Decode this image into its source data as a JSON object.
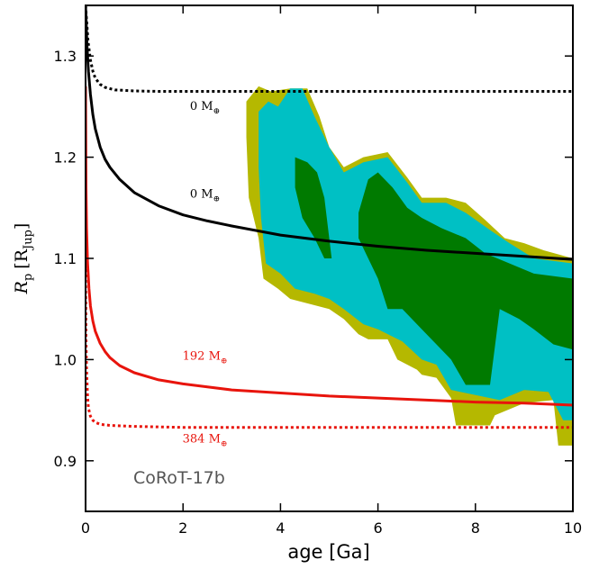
{
  "chart_data": {
    "type": "line",
    "title": "",
    "panel_label": "CoRoT-17b",
    "xlabel": "age [Ga]",
    "ylabel": {
      "symbol": "R",
      "symbol_sub": "p",
      "unit_open": "[R",
      "unit_sub": "Jup",
      "unit_close": "]"
    },
    "xlim": [
      0,
      10
    ],
    "ylim": [
      0.85,
      1.35
    ],
    "x_ticks": [
      0,
      2,
      4,
      6,
      8,
      10
    ],
    "y_ticks": [
      0.9,
      1.0,
      1.1,
      1.2,
      1.3
    ],
    "x_tick_labels": [
      "0",
      "2",
      "4",
      "6",
      "8",
      "10"
    ],
    "y_tick_labels": [
      "0.9",
      "1.0",
      "1.1",
      "1.2",
      "1.3"
    ],
    "colors": {
      "outer_region": "#b5b800",
      "middle_region": "#00c0c4",
      "inner_region": "#007a00",
      "core_0_curves": "#000000",
      "core_heavy_curves": "#e8140c",
      "panel_label": "#555555"
    },
    "series": [
      {
        "label_text": "0 M",
        "label_sub": "⊕",
        "style": "dotted",
        "color": "#000000",
        "label_at": [
          2.45,
          1.247
        ],
        "x": [
          0.0,
          0.05,
          0.1,
          0.15,
          0.2,
          0.3,
          0.4,
          0.6,
          0.8,
          1.0,
          1.5,
          2,
          3,
          4,
          5,
          6,
          7,
          8,
          9,
          10
        ],
        "y": [
          1.35,
          1.315,
          1.296,
          1.285,
          1.278,
          1.272,
          1.269,
          1.2665,
          1.266,
          1.2655,
          1.265,
          1.265,
          1.265,
          1.265,
          1.265,
          1.265,
          1.265,
          1.265,
          1.265,
          1.265
        ]
      },
      {
        "label_text": "0 M",
        "label_sub": "⊕",
        "style": "solid",
        "color": "#000000",
        "label_at": [
          2.45,
          1.16
        ],
        "x": [
          0.0,
          0.03,
          0.06,
          0.1,
          0.15,
          0.2,
          0.3,
          0.4,
          0.5,
          0.7,
          1.0,
          1.5,
          2,
          2.5,
          3,
          4,
          5,
          6,
          7,
          8,
          9,
          10
        ],
        "y": [
          1.35,
          1.31,
          1.285,
          1.262,
          1.242,
          1.228,
          1.21,
          1.198,
          1.19,
          1.178,
          1.165,
          1.152,
          1.143,
          1.137,
          1.132,
          1.123,
          1.117,
          1.112,
          1.108,
          1.105,
          1.102,
          1.099
        ]
      },
      {
        "label_text": "192 M",
        "label_sub": "⊕",
        "style": "solid",
        "color": "#e8140c",
        "label_at": [
          2.45,
          1.0
        ],
        "x": [
          0.0,
          0.01,
          0.02,
          0.04,
          0.07,
          0.1,
          0.15,
          0.2,
          0.3,
          0.4,
          0.5,
          0.7,
          1.0,
          1.5,
          2,
          2.5,
          3,
          4,
          5,
          6,
          7,
          8,
          9,
          10
        ],
        "y": [
          1.27,
          1.17,
          1.13,
          1.096,
          1.07,
          1.053,
          1.038,
          1.028,
          1.016,
          1.008,
          1.002,
          0.994,
          0.987,
          0.98,
          0.976,
          0.973,
          0.97,
          0.967,
          0.964,
          0.962,
          0.96,
          0.958,
          0.957,
          0.955
        ]
      },
      {
        "label_text": "384 M",
        "label_sub": "⊕",
        "style": "dotted",
        "color": "#e8140c",
        "label_at": [
          2.45,
          0.918
        ],
        "x": [
          0.0,
          0.01,
          0.02,
          0.04,
          0.06,
          0.1,
          0.15,
          0.2,
          0.3,
          0.5,
          1.0,
          2,
          3,
          4,
          5,
          6,
          7,
          8,
          9,
          10
        ],
        "y": [
          1.1,
          1.02,
          0.99,
          0.964,
          0.952,
          0.944,
          0.94,
          0.938,
          0.936,
          0.935,
          0.934,
          0.933,
          0.933,
          0.933,
          0.933,
          0.933,
          0.933,
          0.933,
          0.933,
          0.933
        ]
      }
    ],
    "regions": [
      {
        "level": "outer",
        "color": "#b5b800",
        "polygon": [
          [
            3.3,
            1.255
          ],
          [
            3.55,
            1.27
          ],
          [
            3.8,
            1.265
          ],
          [
            4.2,
            1.268
          ],
          [
            4.55,
            1.268
          ],
          [
            4.8,
            1.24
          ],
          [
            5.0,
            1.21
          ],
          [
            5.3,
            1.19
          ],
          [
            5.7,
            1.2
          ],
          [
            6.2,
            1.205
          ],
          [
            6.6,
            1.18
          ],
          [
            6.9,
            1.16
          ],
          [
            7.4,
            1.16
          ],
          [
            7.8,
            1.155
          ],
          [
            8.2,
            1.138
          ],
          [
            8.6,
            1.12
          ],
          [
            9.0,
            1.115
          ],
          [
            9.4,
            1.108
          ],
          [
            10.0,
            1.1
          ],
          [
            10.0,
            0.915
          ],
          [
            9.7,
            0.915
          ],
          [
            9.6,
            0.96
          ],
          [
            9.0,
            0.957
          ],
          [
            8.4,
            0.945
          ],
          [
            8.3,
            0.935
          ],
          [
            7.6,
            0.935
          ],
          [
            7.5,
            0.962
          ],
          [
            7.2,
            0.982
          ],
          [
            6.9,
            0.985
          ],
          [
            6.8,
            0.99
          ],
          [
            6.4,
            1.0
          ],
          [
            6.2,
            1.02
          ],
          [
            5.8,
            1.02
          ],
          [
            5.6,
            1.025
          ],
          [
            5.3,
            1.04
          ],
          [
            5.0,
            1.05
          ],
          [
            4.6,
            1.055
          ],
          [
            4.2,
            1.06
          ],
          [
            3.95,
            1.07
          ],
          [
            3.65,
            1.08
          ],
          [
            3.55,
            1.12
          ],
          [
            3.35,
            1.16
          ],
          [
            3.3,
            1.22
          ]
        ]
      },
      {
        "level": "middle",
        "color": "#00c0c4",
        "polygon": [
          [
            3.55,
            1.245
          ],
          [
            3.75,
            1.255
          ],
          [
            3.95,
            1.25
          ],
          [
            4.2,
            1.268
          ],
          [
            4.45,
            1.268
          ],
          [
            4.7,
            1.24
          ],
          [
            5.0,
            1.21
          ],
          [
            5.3,
            1.185
          ],
          [
            5.7,
            1.195
          ],
          [
            6.2,
            1.2
          ],
          [
            6.6,
            1.175
          ],
          [
            6.9,
            1.155
          ],
          [
            7.4,
            1.155
          ],
          [
            7.8,
            1.145
          ],
          [
            8.3,
            1.128
          ],
          [
            8.7,
            1.115
          ],
          [
            9.2,
            1.1
          ],
          [
            10.0,
            1.095
          ],
          [
            10.0,
            0.94
          ],
          [
            9.8,
            0.94
          ],
          [
            9.5,
            0.968
          ],
          [
            9.0,
            0.97
          ],
          [
            8.5,
            0.96
          ],
          [
            8.0,
            0.965
          ],
          [
            7.5,
            0.97
          ],
          [
            7.2,
            0.995
          ],
          [
            6.9,
            1.0
          ],
          [
            6.5,
            1.018
          ],
          [
            6.0,
            1.03
          ],
          [
            5.7,
            1.035
          ],
          [
            5.3,
            1.05
          ],
          [
            5.0,
            1.06
          ],
          [
            4.7,
            1.065
          ],
          [
            4.3,
            1.07
          ],
          [
            4.0,
            1.085
          ],
          [
            3.7,
            1.095
          ],
          [
            3.6,
            1.14
          ],
          [
            3.55,
            1.19
          ]
        ]
      },
      {
        "level": "inner",
        "color": "#007a00",
        "polygon": [
          [
            4.3,
            1.2
          ],
          [
            4.55,
            1.195
          ],
          [
            4.75,
            1.185
          ],
          [
            4.9,
            1.16
          ],
          [
            5.0,
            1.12
          ],
          [
            5.05,
            1.1
          ],
          [
            4.9,
            1.1
          ],
          [
            4.7,
            1.12
          ],
          [
            4.45,
            1.14
          ],
          [
            4.3,
            1.17
          ]
        ]
      },
      {
        "level": "inner",
        "color": "#007a00",
        "polygon": [
          [
            5.6,
            1.145
          ],
          [
            5.8,
            1.178
          ],
          [
            6.0,
            1.185
          ],
          [
            6.3,
            1.17
          ],
          [
            6.6,
            1.15
          ],
          [
            6.9,
            1.14
          ],
          [
            7.3,
            1.13
          ],
          [
            7.8,
            1.12
          ],
          [
            8.2,
            1.105
          ],
          [
            8.6,
            1.097
          ],
          [
            9.2,
            1.085
          ],
          [
            10.0,
            1.08
          ],
          [
            10.0,
            1.01
          ],
          [
            9.6,
            1.015
          ],
          [
            9.2,
            1.03
          ],
          [
            8.9,
            1.04
          ],
          [
            8.5,
            1.05
          ],
          [
            8.3,
            0.975
          ],
          [
            7.8,
            0.975
          ],
          [
            7.5,
            1.0
          ],
          [
            7.2,
            1.015
          ],
          [
            6.9,
            1.03
          ],
          [
            6.5,
            1.05
          ],
          [
            6.2,
            1.05
          ],
          [
            6.0,
            1.08
          ],
          [
            5.8,
            1.1
          ],
          [
            5.6,
            1.12
          ]
        ]
      }
    ]
  }
}
